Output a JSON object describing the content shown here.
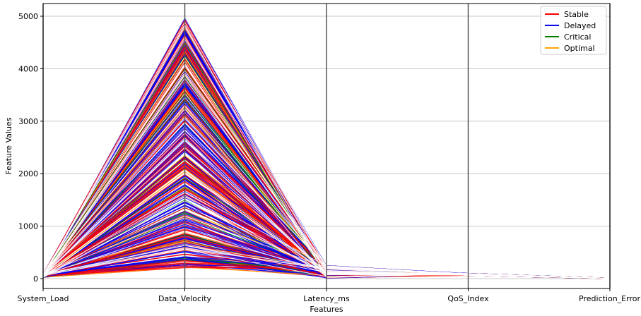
{
  "chart_data": {
    "type": "parallel_coordinates",
    "title": "",
    "xlabel": "Features",
    "ylabel": "Feature Values",
    "axes": [
      "System_Load",
      "Data_Velocity",
      "Latency_ms",
      "QoS_Index",
      "Prediction_Error"
    ],
    "ylim": [
      0,
      5000
    ],
    "yticks": [
      0,
      1000,
      2000,
      3000,
      4000,
      5000
    ],
    "grid": true,
    "legend_position": "top-right",
    "series": [
      {
        "name": "Stable",
        "color": "#ff0000"
      },
      {
        "name": "Delayed",
        "color": "#0000ff"
      },
      {
        "name": "Critical",
        "color": "#008000"
      },
      {
        "name": "Optimal",
        "color": "#ffa500"
      }
    ],
    "value_ranges": {
      "System_Load": [
        20,
        90
      ],
      "Data_Velocity": [
        200,
        5000
      ],
      "Latency_ms": [
        10,
        250
      ],
      "QoS_Index": [
        60,
        100
      ],
      "Prediction_Error": [
        0,
        10
      ]
    }
  }
}
